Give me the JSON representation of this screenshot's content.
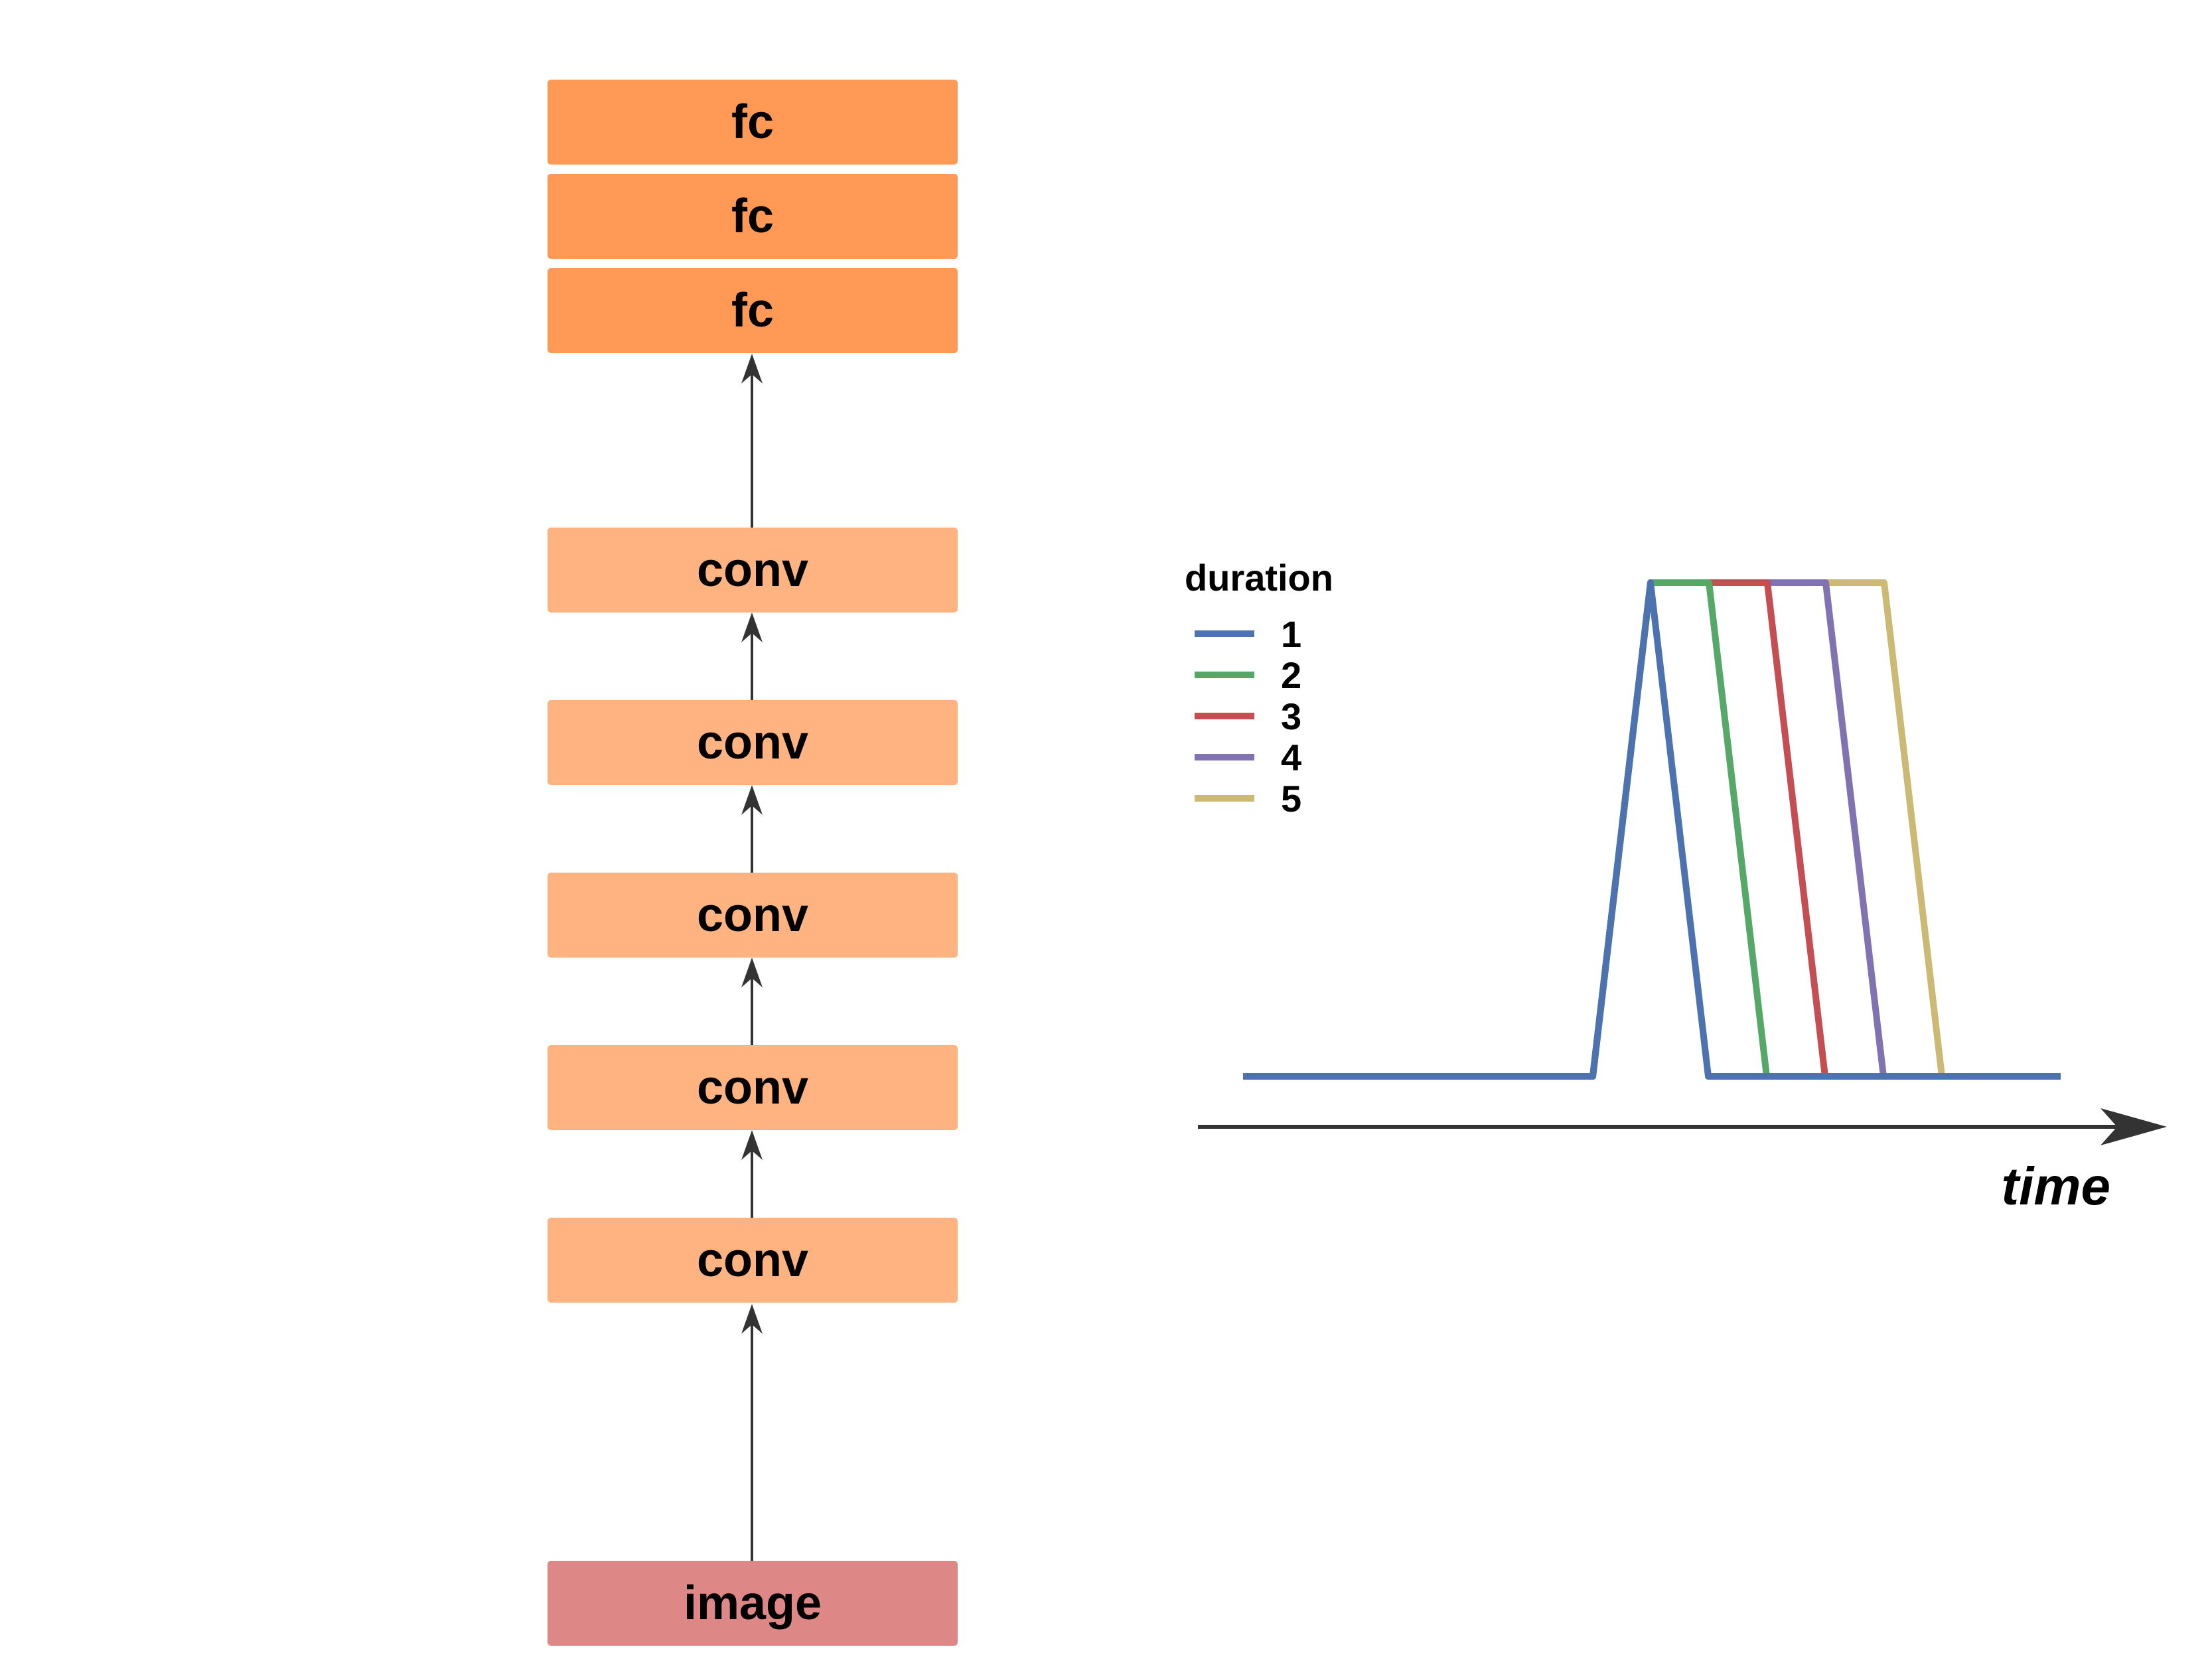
{
  "network": {
    "fc_blocks": [
      "fc",
      "fc",
      "fc"
    ],
    "conv_blocks": [
      "conv",
      "conv",
      "conv",
      "conv",
      "conv"
    ],
    "input_label": "image"
  },
  "timing": {
    "legend_title": "duration",
    "axis_label": "time",
    "series": [
      {
        "name": "1",
        "duration": 1,
        "color": "#4c72b0"
      },
      {
        "name": "2",
        "duration": 2,
        "color": "#55a868"
      },
      {
        "name": "3",
        "duration": 3,
        "color": "#c44e52"
      },
      {
        "name": "4",
        "duration": 4,
        "color": "#8172b2"
      },
      {
        "name": "5",
        "duration": 5,
        "color": "#ccb974"
      }
    ]
  },
  "colors": {
    "fc": "#ff9955",
    "conv": "#ffb380",
    "image": "#de8787",
    "arrow": "#333333"
  }
}
